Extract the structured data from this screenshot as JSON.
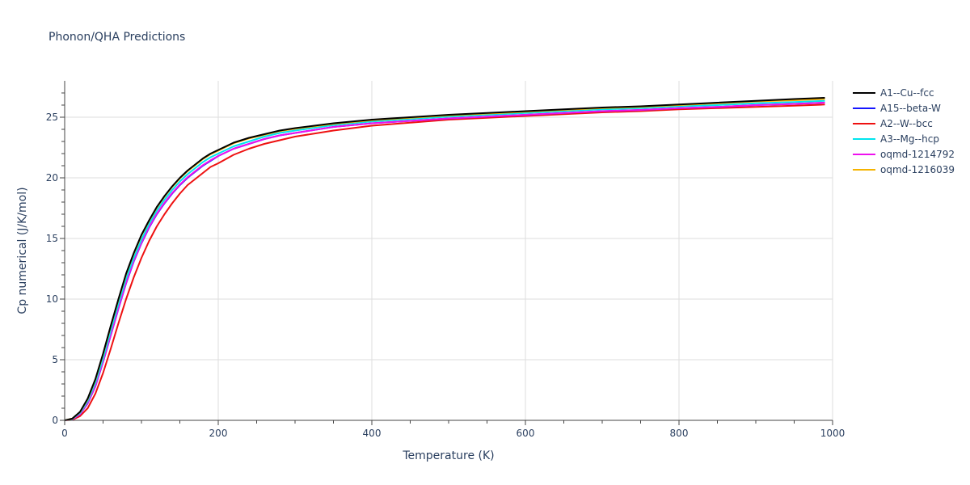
{
  "chart_data": {
    "type": "line",
    "title": "Phonon/QHA Predictions",
    "xlabel": "Temperature (K)",
    "ylabel": "Cp numerical (J/K/mol)",
    "xlim": [
      0,
      1000
    ],
    "ylim": [
      0,
      28
    ],
    "xticks": [
      0,
      200,
      400,
      600,
      800,
      1000
    ],
    "yticks": [
      0,
      5,
      10,
      15,
      20,
      25
    ],
    "grid": true,
    "legend_position": "right",
    "x": [
      0,
      10,
      20,
      30,
      40,
      50,
      60,
      70,
      80,
      90,
      100,
      110,
      120,
      130,
      140,
      150,
      160,
      170,
      180,
      190,
      200,
      220,
      240,
      260,
      280,
      300,
      350,
      400,
      450,
      500,
      550,
      600,
      650,
      700,
      750,
      800,
      850,
      900,
      950,
      990
    ],
    "series": [
      {
        "name": "A1--Cu--fcc",
        "color": "#000000",
        "values": [
          0,
          0.15,
          0.7,
          1.8,
          3.4,
          5.5,
          7.8,
          10.0,
          12.1,
          13.8,
          15.3,
          16.5,
          17.6,
          18.5,
          19.3,
          20.0,
          20.6,
          21.1,
          21.6,
          22.0,
          22.3,
          22.9,
          23.3,
          23.6,
          23.9,
          24.1,
          24.5,
          24.8,
          25.0,
          25.2,
          25.35,
          25.5,
          25.65,
          25.8,
          25.9,
          26.05,
          26.2,
          26.35,
          26.5,
          26.6
        ]
      },
      {
        "name": "A15--beta-W",
        "color": "#1616ff",
        "values": [
          0,
          0.1,
          0.5,
          1.4,
          2.8,
          4.8,
          7.0,
          9.2,
          11.3,
          13.1,
          14.6,
          15.9,
          17.0,
          17.9,
          18.7,
          19.4,
          20.0,
          20.5,
          21.0,
          21.4,
          21.8,
          22.4,
          22.8,
          23.2,
          23.5,
          23.7,
          24.2,
          24.5,
          24.7,
          24.9,
          25.05,
          25.2,
          25.35,
          25.5,
          25.6,
          25.75,
          25.85,
          26.0,
          26.1,
          26.2
        ]
      },
      {
        "name": "A2--W--bcc",
        "color": "#ee1111",
        "values": [
          0,
          0.05,
          0.35,
          1.0,
          2.2,
          3.9,
          5.9,
          8.0,
          10.0,
          11.8,
          13.4,
          14.8,
          16.0,
          17.0,
          17.9,
          18.7,
          19.4,
          19.9,
          20.4,
          20.9,
          21.2,
          21.9,
          22.4,
          22.8,
          23.1,
          23.4,
          23.9,
          24.3,
          24.55,
          24.8,
          24.95,
          25.1,
          25.25,
          25.4,
          25.5,
          25.65,
          25.75,
          25.85,
          25.95,
          26.05
        ]
      },
      {
        "name": "A3--Mg--hcp",
        "color": "#00e5ee",
        "values": [
          0,
          0.12,
          0.6,
          1.6,
          3.1,
          5.1,
          7.4,
          9.6,
          11.7,
          13.4,
          14.9,
          16.2,
          17.3,
          18.2,
          19.0,
          19.7,
          20.3,
          20.8,
          21.3,
          21.7,
          22.0,
          22.6,
          23.0,
          23.4,
          23.7,
          23.9,
          24.35,
          24.65,
          24.85,
          25.05,
          25.2,
          25.35,
          25.5,
          25.65,
          25.75,
          25.9,
          26.0,
          26.15,
          26.25,
          26.35
        ]
      },
      {
        "name": "oqmd-1214792",
        "color": "#ee11ee",
        "values": [
          0,
          0.1,
          0.5,
          1.45,
          2.85,
          4.85,
          7.05,
          9.25,
          11.35,
          13.15,
          14.65,
          15.95,
          17.05,
          17.95,
          18.75,
          19.45,
          20.05,
          20.55,
          21.05,
          21.45,
          21.8,
          22.4,
          22.8,
          23.2,
          23.5,
          23.7,
          24.2,
          24.5,
          24.7,
          24.9,
          25.05,
          25.2,
          25.35,
          25.5,
          25.6,
          25.75,
          25.85,
          26.0,
          26.1,
          26.2
        ]
      },
      {
        "name": "oqmd-1216039",
        "color": "#f5b300",
        "values": [
          0,
          0.14,
          0.68,
          1.75,
          3.35,
          5.45,
          7.75,
          9.95,
          12.05,
          13.75,
          15.25,
          16.45,
          17.55,
          18.45,
          19.25,
          19.95,
          20.55,
          21.05,
          21.55,
          21.95,
          22.25,
          22.85,
          23.25,
          23.55,
          23.85,
          24.05,
          24.45,
          24.75,
          24.95,
          25.15,
          25.3,
          25.45,
          25.6,
          25.75,
          25.85,
          26.0,
          26.15,
          26.3,
          26.4,
          26.5
        ]
      }
    ]
  }
}
